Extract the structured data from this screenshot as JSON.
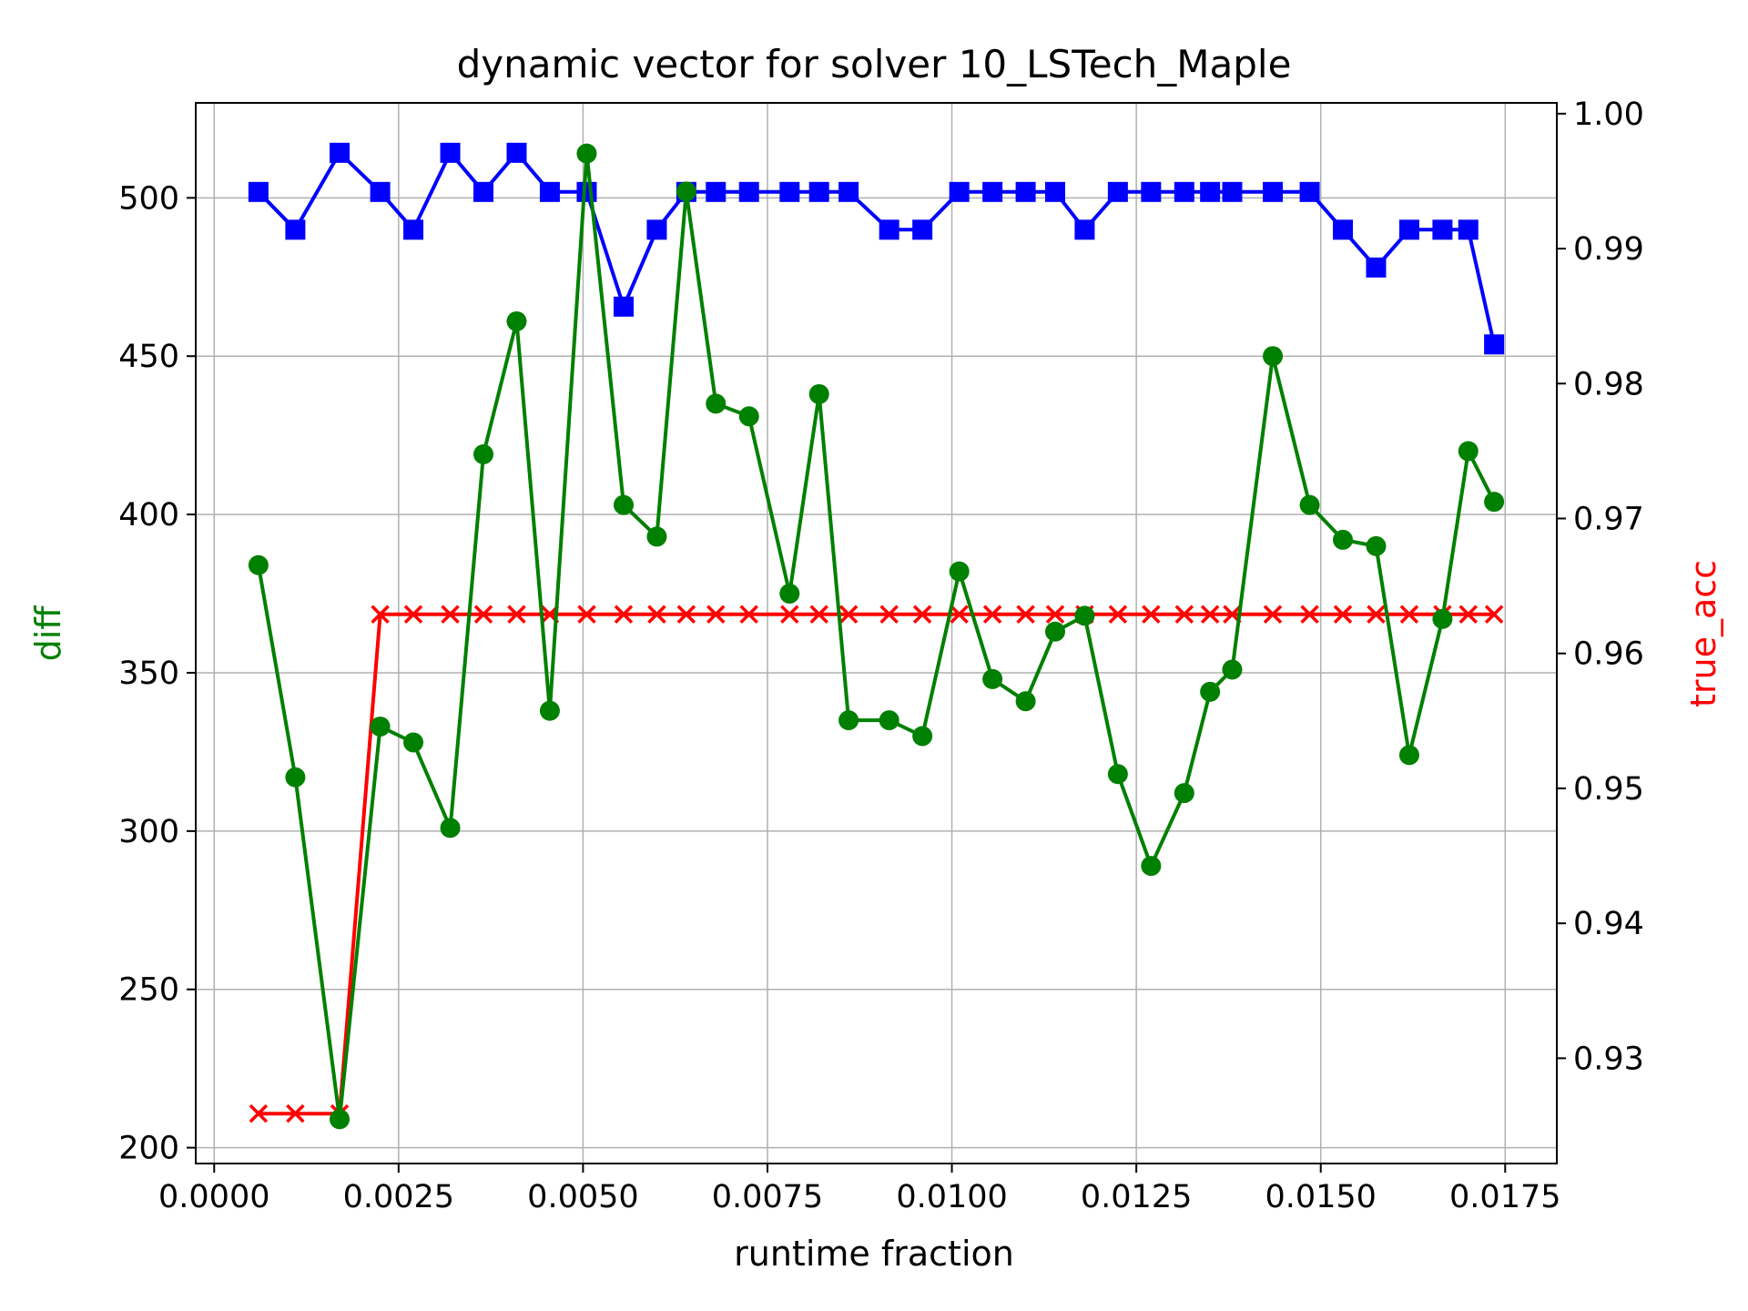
{
  "chart_data": {
    "type": "line",
    "title": "dynamic vector for solver 10_LSTech_Maple",
    "xlabel": "runtime fraction",
    "ylabel_left": "diff",
    "ylabel_right": "true_acc",
    "xlim": [
      -0.00025,
      0.0182
    ],
    "ylim_left": [
      195,
      530
    ],
    "ylim_right": [
      0.9222,
      1.0008
    ],
    "x_ticks": [
      0.0,
      0.0025,
      0.005,
      0.0075,
      0.01,
      0.0125,
      0.015,
      0.0175
    ],
    "x_tick_labels": [
      "0.0000",
      "0.0025",
      "0.0050",
      "0.0075",
      "0.0100",
      "0.0125",
      "0.0150",
      "0.0175"
    ],
    "y_left_ticks": [
      200,
      250,
      300,
      350,
      400,
      450,
      500
    ],
    "y_left_tick_labels": [
      "200",
      "250",
      "300",
      "350",
      "400",
      "450",
      "500"
    ],
    "y_right_ticks": [
      0.93,
      0.94,
      0.95,
      0.96,
      0.97,
      0.98,
      0.99,
      1.0
    ],
    "y_right_tick_labels": [
      "0.93",
      "0.94",
      "0.95",
      "0.96",
      "0.97",
      "0.98",
      "0.99",
      "1.00"
    ],
    "grid": true,
    "x": [
      0.0006,
      0.0011,
      0.0017,
      0.00225,
      0.0027,
      0.0032,
      0.00365,
      0.0041,
      0.00455,
      0.00505,
      0.00555,
      0.006,
      0.0064,
      0.0068,
      0.00725,
      0.0078,
      0.0082,
      0.0086,
      0.00915,
      0.0096,
      0.0101,
      0.01055,
      0.011,
      0.0114,
      0.0118,
      0.01225,
      0.0127,
      0.01315,
      0.0135,
      0.0138,
      0.01435,
      0.01485,
      0.0153,
      0.01575,
      0.0162,
      0.01665,
      0.017,
      0.01735
    ],
    "series": [
      {
        "axis": "left",
        "color": "#008000",
        "marker": "circle",
        "values": [
          384,
          317,
          209,
          333,
          328,
          301,
          419,
          461,
          338,
          514,
          403,
          393,
          502,
          435,
          431,
          375,
          438,
          335,
          335,
          330,
          382,
          348,
          341,
          363,
          368,
          318,
          289,
          312,
          344,
          351,
          450,
          403,
          392,
          390,
          324,
          367,
          420,
          404
        ]
      },
      {
        "axis": "right",
        "color": "#0000ff",
        "marker": "square",
        "values": [
          0.9942,
          0.9914,
          0.9971,
          0.9942,
          0.9914,
          0.9971,
          0.9942,
          0.9971,
          0.9942,
          0.9942,
          0.9857,
          0.9914,
          0.9942,
          0.9942,
          0.9942,
          0.9942,
          0.9942,
          0.9942,
          0.9914,
          0.9914,
          0.9942,
          0.9942,
          0.9942,
          0.9942,
          0.9914,
          0.9942,
          0.9942,
          0.9942,
          0.9942,
          0.9942,
          0.9942,
          0.9942,
          0.9914,
          0.9886,
          0.9914,
          0.9914,
          0.9914,
          0.9829
        ]
      },
      {
        "axis": "right",
        "color": "#ff0000",
        "marker": "x",
        "values": [
          0.9259,
          0.9259,
          0.9259,
          0.9629,
          0.9629,
          0.9629,
          0.9629,
          0.9629,
          0.9629,
          0.9629,
          0.9629,
          0.9629,
          0.9629,
          0.9629,
          0.9629,
          0.9629,
          0.9629,
          0.9629,
          0.9629,
          0.9629,
          0.9629,
          0.9629,
          0.9629,
          0.9629,
          0.9629,
          0.9629,
          0.9629,
          0.9629,
          0.9629,
          0.9629,
          0.9629,
          0.9629,
          0.9629,
          0.9629,
          0.9629,
          0.9629,
          0.9629,
          0.9629
        ]
      }
    ],
    "colors": {
      "left_axis_label": "#008000",
      "right_axis_label": "#ff0000",
      "grid": "#b0b0b0",
      "frame": "#000000"
    }
  }
}
